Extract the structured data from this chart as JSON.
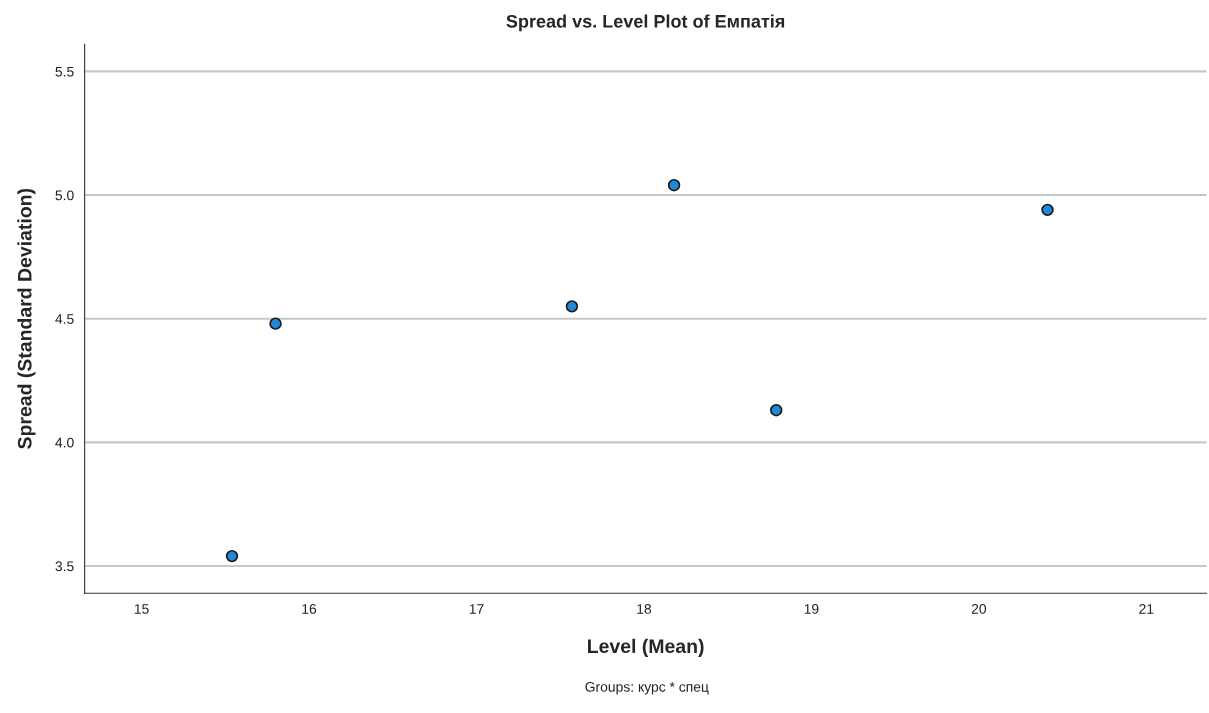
{
  "chart_data": {
    "type": "scatter",
    "title": "Spread vs. Level Plot of Емпатія",
    "xlabel": "Level (Mean)",
    "ylabel": "Spread (Standard Deviation)",
    "x": [
      15.54,
      15.8,
      17.57,
      18.18,
      18.79,
      20.41
    ],
    "series": [
      {
        "color": "#1e88d9",
        "values": [
          3.54,
          4.48,
          4.55,
          5.04,
          4.13,
          4.94
        ]
      }
    ],
    "xlim": [
      14.66,
      21.36
    ],
    "xticks": [
      15,
      16,
      17,
      18,
      19,
      20,
      21
    ],
    "ylim": [
      3.39,
      5.61
    ],
    "yticks": [
      3.5,
      {
        "value": 4,
        "label": "4.0"
      },
      4.5,
      {
        "value": 5,
        "label": "5.0"
      },
      5.5
    ],
    "grid": "y",
    "marker": "circle",
    "legend": false,
    "annotations": [
      "Groups: курс * спец"
    ]
  }
}
